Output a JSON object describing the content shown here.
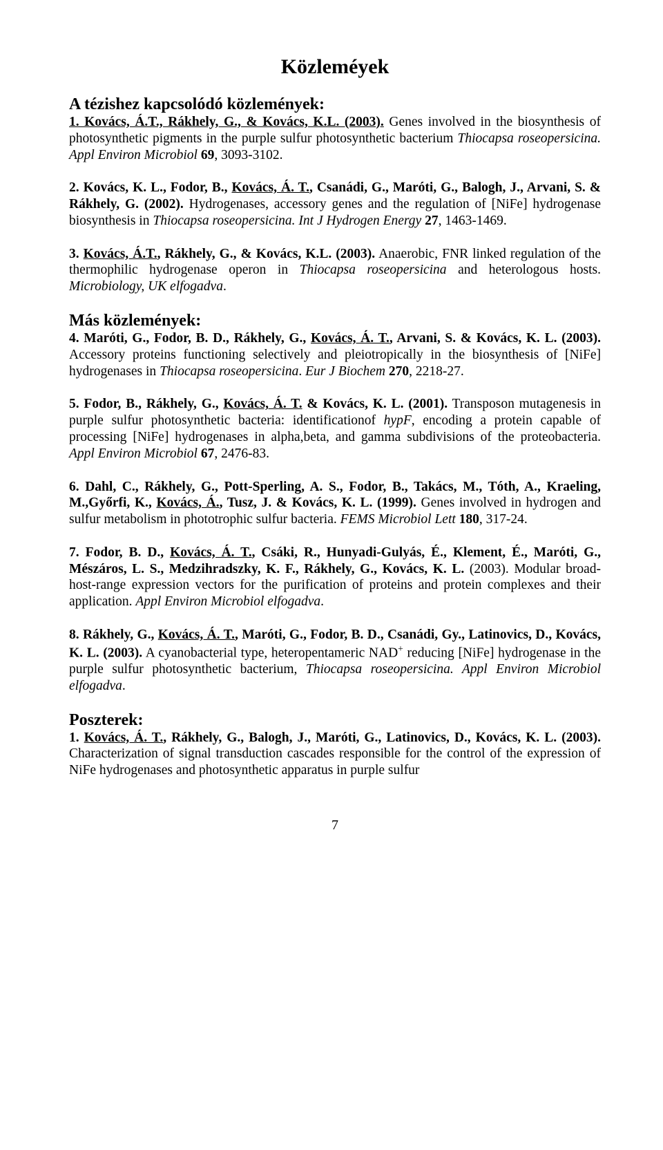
{
  "page": {
    "title": "Közleméyek",
    "section_related": "A tézishez kapcsolódó közlemények:",
    "section_other": "Más közlemények:",
    "section_posters": "Poszterek:",
    "page_number": "7"
  },
  "related": [
    {
      "num_author": "1. Kovács, Á.T., Rákhely, G., & Kovács, K.L. (2003).",
      "body_pre": " Genes involved in the biosynthesis of photosynthetic pigments in the purple sulfur photosynthetic bacterium ",
      "journal": "Thiocapsa roseopersicina. Appl Environ Microbiol",
      "vol": " 69",
      "tail": ", 3093-3102."
    },
    {
      "num_author_pre": "2. Kovács, K. L., Fodor, B., ",
      "num_author_u": "Kovács, Á. T.",
      "num_author_post": ", Csanádi, G., Maróti, G., Balogh, J., Arvani, S. & Rákhely, G. (2002).",
      "body_pre": " Hydrogenases, accessory genes and the regulation of [NiFe] hydrogenase biosynthesis in ",
      "journal": "Thiocapsa roseopersicina. Int J Hydrogen Energy ",
      "vol": "27",
      "tail": ", 1463-1469."
    },
    {
      "num_author_pre": "3. ",
      "num_author_u": "Kovács, Á.T.",
      "num_author_post": ", Rákhely, G., & Kovács, K.L. (2003).",
      "body_pre": " Anaerobic, FNR linked regulation of the thermophilic hydrogenase operon in ",
      "journal_mid": "Thiocapsa roseopersicina",
      "body_mid": " and heterologous hosts. ",
      "journal": "Microbiology, UK elfogadva",
      "tail": "."
    }
  ],
  "other": [
    {
      "num_author_pre": "4. Maróti, G., Fodor, B. D., Rákhely, G., ",
      "num_author_u": "Kovács, Á. T.",
      "num_author_post": ", Arvani, S. & Kovács, K. L. (2003).",
      "body_pre": " Accessory proteins functioning selectively and pleiotropically in the biosynthesis of [NiFe] hydrogenases in ",
      "journal_mid": "Thiocapsa roseopersicina",
      "body_mid": ". ",
      "journal": "Eur J Biochem ",
      "vol": "270",
      "tail": ", 2218-27."
    },
    {
      "num_author_pre": "5. Fodor, B., Rákhely, G., ",
      "num_author_u": "Kovács, Á. T.",
      "num_author_post": " & Kovács, K. L. (2001).",
      "body_pre": " Transposon mutagenesis in purple sulfur photosynthetic bacteria: identificationof ",
      "ital_mid": "hypF",
      "body_mid": ", encoding a protein capable of processing [NiFe] hydrogenases in alpha,beta, and gamma subdivisions of the proteobacteria. ",
      "journal": "Appl Environ Microbiol ",
      "vol": "67",
      "tail": ", 2476-83."
    },
    {
      "num_author_pre": "6. Dahl, C., Rákhely, G., Pott-Sperling, A. S., Fodor, B., Takács, M., Tóth, A., Kraeling, M.,Győrfi, K., ",
      "num_author_u": "Kovács, Á.",
      "num_author_post": ", Tusz, J. & Kovács, K. L. (1999).",
      "body_pre": " Genes involved in hydrogen and sulfur metabolism in phototrophic sulfur bacteria. ",
      "journal": "FEMS Microbiol Lett ",
      "vol": "180",
      "tail": ", 317-24."
    },
    {
      "num_author_pre": "7. Fodor, B. D., ",
      "num_author_u": "Kovács, Á. T.",
      "num_author_post": ", Csáki, R., Hunyadi-Gulyás, É., Klement, É., Maróti, G., Mészáros, L. S., Medzihradszky, K. F., Rákhely, G., Kovács, K. L.",
      "year": " (2003). ",
      "body_pre": "Modular broad-host-range expression vectors for the purification of proteins and protein complexes and their application. ",
      "journal": "Appl Environ Microbiol elfogadva",
      "tail": "."
    },
    {
      "num_author_pre": "8. Rákhely, G., ",
      "num_author_u": "Kovács, Á. T.",
      "num_author_post": ", Maróti, G., Fodor, B. D., Csanádi, Gy., Latinovics, D., Kovács, K. L. (2003).",
      "body_pre": " A cyanobacterial type, heteropentameric NAD",
      "sup": "+",
      "body_mid": " reducing [NiFe] hydrogenase in the purple sulfur photosynthetic bacterium, ",
      "journal_mid": "Thiocapsa roseopersicina. Appl Environ Microbiol elfogadva",
      "tail": "."
    }
  ],
  "posters": [
    {
      "num_author_pre": "1. ",
      "num_author_u": "Kovács, Á. T.",
      "num_author_post": ", Rákhely, G., Balogh, J., Maróti, G., Latinovics, D., Kovács, K. L. (2003).",
      "body_pre": " Characterization of signal transduction cascades responsible for the control of the expression of  NiFe hydrogenases and photosynthetic apparatus in purple sulfur "
    }
  ]
}
